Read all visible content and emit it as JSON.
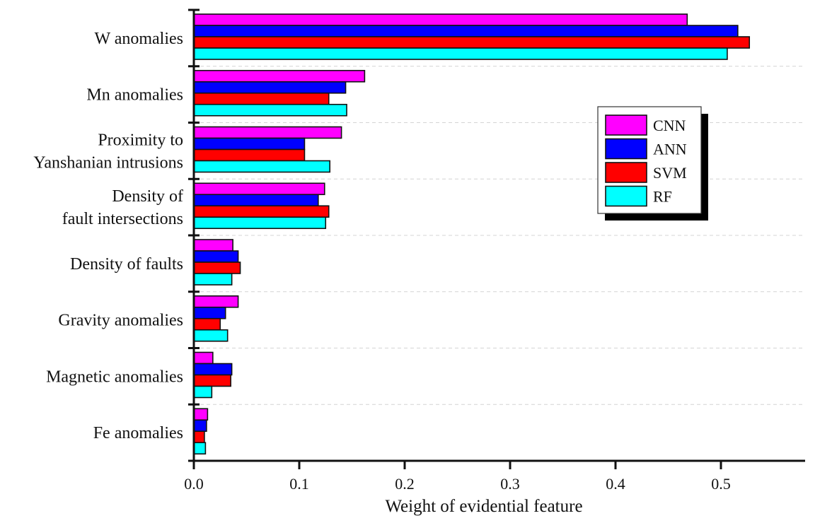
{
  "chart_data": {
    "type": "bar",
    "orientation": "horizontal",
    "title": "",
    "xlabel": "Weight of evidential feature",
    "ylabel": "",
    "xlim": [
      0.0,
      0.58
    ],
    "xticks": [
      "0.0",
      "0.1",
      "0.2",
      "0.3",
      "0.4",
      "0.5"
    ],
    "xtick_values": [
      0.0,
      0.1,
      0.2,
      0.3,
      0.4,
      0.5
    ],
    "grid": "horizontal dashed between categories",
    "legend_position": "right-center",
    "categories": [
      [
        "W anomalies"
      ],
      [
        "Mn anomalies"
      ],
      [
        "Proximity to",
        "Yanshanian intrusions"
      ],
      [
        "Density of",
        "fault intersections"
      ],
      [
        "Density of faults"
      ],
      [
        "Gravity anomalies"
      ],
      [
        "Magnetic anomalies"
      ],
      [
        "Fe anomalies"
      ]
    ],
    "series": [
      {
        "name": "CNN",
        "color": "#ff00ff",
        "values": [
          0.468,
          0.162,
          0.14,
          0.124,
          0.037,
          0.042,
          0.018,
          0.013
        ]
      },
      {
        "name": "ANN",
        "color": "#0000ff",
        "values": [
          0.516,
          0.144,
          0.105,
          0.118,
          0.042,
          0.03,
          0.036,
          0.012
        ]
      },
      {
        "name": "SVM",
        "color": "#ff0000",
        "values": [
          0.527,
          0.128,
          0.105,
          0.128,
          0.044,
          0.025,
          0.035,
          0.01
        ]
      },
      {
        "name": "RF",
        "color": "#00ffff",
        "values": [
          0.506,
          0.145,
          0.129,
          0.125,
          0.036,
          0.032,
          0.017,
          0.011
        ]
      }
    ]
  }
}
